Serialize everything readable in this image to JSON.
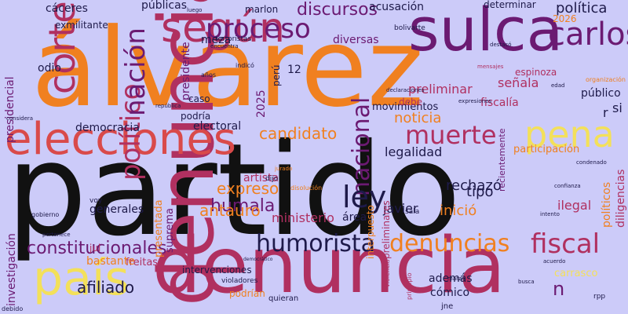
{
  "colors": {
    "background": "#cccbf9",
    "orange": "#f08020",
    "red": "#d94a4a",
    "crimson": "#b03060",
    "purple": "#6b1a72",
    "yellow": "#f3e05a",
    "black": "#111111",
    "navy": "#1e1a4a"
  },
  "words": [
    {
      "text": "partido",
      "color": "black"
    },
    {
      "text": "álvarez",
      "color": "orange"
    },
    {
      "text": "denuncia",
      "color": "crimson"
    },
    {
      "text": "sulca",
      "color": "purple"
    },
    {
      "text": "elecciones",
      "color": "red"
    },
    {
      "text": "según",
      "color": "crimson"
    },
    {
      "text": "país",
      "color": "yellow"
    },
    {
      "text": "pena",
      "color": "yellow"
    },
    {
      "text": "carlos",
      "color": "purple"
    },
    {
      "text": "corte",
      "color": "crimson"
    },
    {
      "text": "político",
      "color": "crimson"
    },
    {
      "text": "nación",
      "color": "purple"
    },
    {
      "text": "proceso",
      "color": "purple"
    },
    {
      "text": "discursos",
      "color": "purple"
    },
    {
      "text": "nacional",
      "color": "purple"
    },
    {
      "text": "muerte",
      "color": "crimson"
    },
    {
      "text": "ley",
      "color": "navy"
    },
    {
      "text": "humorista",
      "color": "navy"
    },
    {
      "text": "denuncias",
      "color": "orange"
    },
    {
      "text": "fiscal",
      "color": "crimson"
    },
    {
      "text": "constitucionales",
      "color": "purple"
    },
    {
      "text": "candidato",
      "color": "orange"
    },
    {
      "text": "humala",
      "color": "purple"
    },
    {
      "text": "antauro",
      "color": "orange"
    },
    {
      "text": "expreso",
      "color": "orange"
    },
    {
      "text": "legalidad",
      "color": "navy"
    },
    {
      "text": "afiliado",
      "color": "navy"
    },
    {
      "text": "política",
      "color": "navy"
    },
    {
      "text": "acusación",
      "color": "navy"
    },
    {
      "text": "públicas",
      "color": "navy"
    },
    {
      "text": "cáceres",
      "color": "navy"
    },
    {
      "text": "noticia",
      "color": "orange"
    },
    {
      "text": "inició",
      "color": "orange"
    },
    {
      "text": "rechazó",
      "color": "navy"
    },
    {
      "text": "javier",
      "color": "navy"
    },
    {
      "text": "tipo",
      "color": "navy"
    },
    {
      "text": "preliminar",
      "color": "crimson"
    },
    {
      "text": "ministerio",
      "color": "crimson"
    },
    {
      "text": "señala",
      "color": "crimson"
    },
    {
      "text": "espinoza",
      "color": "crimson"
    },
    {
      "text": "fiscalía",
      "color": "crimson"
    },
    {
      "text": "público",
      "color": "navy"
    },
    {
      "text": "participación",
      "color": "orange"
    },
    {
      "text": "democracia",
      "color": "navy"
    },
    {
      "text": "electoral",
      "color": "navy"
    },
    {
      "text": "presidente",
      "color": "purple"
    },
    {
      "text": "presidencial",
      "color": "purple"
    },
    {
      "text": "investigación",
      "color": "purple"
    },
    {
      "text": "2025",
      "color": "purple"
    },
    {
      "text": "2026",
      "color": "orange"
    },
    {
      "text": "12",
      "color": "navy"
    },
    {
      "text": "podría",
      "color": "navy"
    },
    {
      "text": "generales",
      "color": "navy"
    },
    {
      "text": "artista",
      "color": "crimson"
    },
    {
      "text": "ilegal",
      "color": "crimson"
    },
    {
      "text": "políticos",
      "color": "orange"
    },
    {
      "text": "diligencias",
      "color": "crimson"
    },
    {
      "text": "odio",
      "color": "navy"
    },
    {
      "text": "diversas",
      "color": "purple"
    },
    {
      "text": "movimientos",
      "color": "navy"
    },
    {
      "text": "perú",
      "color": "navy"
    },
    {
      "text": "meza",
      "color": "navy"
    },
    {
      "text": "marlon",
      "color": "navy"
    },
    {
      "text": "determinar",
      "color": "navy"
    },
    {
      "text": "debe",
      "color": "crimson"
    },
    {
      "text": "área",
      "color": "navy"
    },
    {
      "text": "además",
      "color": "navy"
    },
    {
      "text": "cómico",
      "color": "navy"
    },
    {
      "text": "freitas",
      "color": "crimson"
    },
    {
      "text": "bastante",
      "color": "orange"
    },
    {
      "text": "jul",
      "color": "crimson"
    },
    {
      "text": "podrían",
      "color": "orange"
    },
    {
      "text": "intervenciones",
      "color": "navy"
    },
    {
      "text": "suprema",
      "color": "purple"
    },
    {
      "text": "presentada",
      "color": "orange"
    },
    {
      "text": "carrasco",
      "color": "yellow"
    },
    {
      "text": "recientemente",
      "color": "purple"
    },
    {
      "text": "interpuesto",
      "color": "orange"
    },
    {
      "text": "caso",
      "color": "navy"
    },
    {
      "text": "si",
      "color": "navy"
    },
    {
      "text": "r",
      "color": "navy"
    },
    {
      "text": "n",
      "color": "purple"
    },
    {
      "text": "exmilitante",
      "color": "navy"
    },
    {
      "text": "terroristas",
      "color": "navy"
    },
    {
      "text": "bolivarte",
      "color": "navy"
    },
    {
      "text": "preliminares",
      "color": "crimson"
    },
    {
      "text": "violadores",
      "color": "navy"
    },
    {
      "text": "quieran",
      "color": "navy"
    },
    {
      "text": "jne",
      "color": "navy"
    },
    {
      "text": "sala",
      "color": "navy"
    },
    {
      "text": "rpp",
      "color": "navy"
    },
    {
      "text": "dijo",
      "color": "navy"
    },
    {
      "text": "voy",
      "color": "navy"
    },
    {
      "text": "gobierno",
      "color": "navy"
    },
    {
      "text": "pertenece",
      "color": "navy"
    },
    {
      "text": "debido",
      "color": "navy"
    },
    {
      "text": "luego",
      "color": "navy"
    },
    {
      "text": "indicó",
      "color": "navy"
    },
    {
      "text": "años",
      "color": "navy"
    },
    {
      "text": "república",
      "color": "navy"
    },
    {
      "text": "considera",
      "color": "navy"
    },
    {
      "text": "declaraciones",
      "color": "navy"
    },
    {
      "text": "expresiones",
      "color": "navy"
    },
    {
      "text": "acuerdo",
      "color": "navy"
    },
    {
      "text": "intento",
      "color": "navy"
    },
    {
      "text": "principio",
      "color": "crimson"
    },
    {
      "text": "violencia",
      "color": "crimson"
    },
    {
      "text": "confianza",
      "color": "navy"
    },
    {
      "text": "democrático",
      "color": "navy"
    },
    {
      "text": "mensajes",
      "color": "crimson"
    },
    {
      "text": "edad",
      "color": "navy"
    },
    {
      "text": "organización",
      "color": "orange"
    },
    {
      "text": "destacó",
      "color": "navy"
    },
    {
      "text": "encuentra",
      "color": "navy"
    },
    {
      "text": "disolución",
      "color": "orange"
    },
    {
      "text": "jurado",
      "color": "orange"
    },
    {
      "text": "condenado",
      "color": "navy"
    },
    {
      "text": "busca",
      "color": "navy"
    },
    {
      "text": "marzo",
      "color": "navy"
    }
  ]
}
